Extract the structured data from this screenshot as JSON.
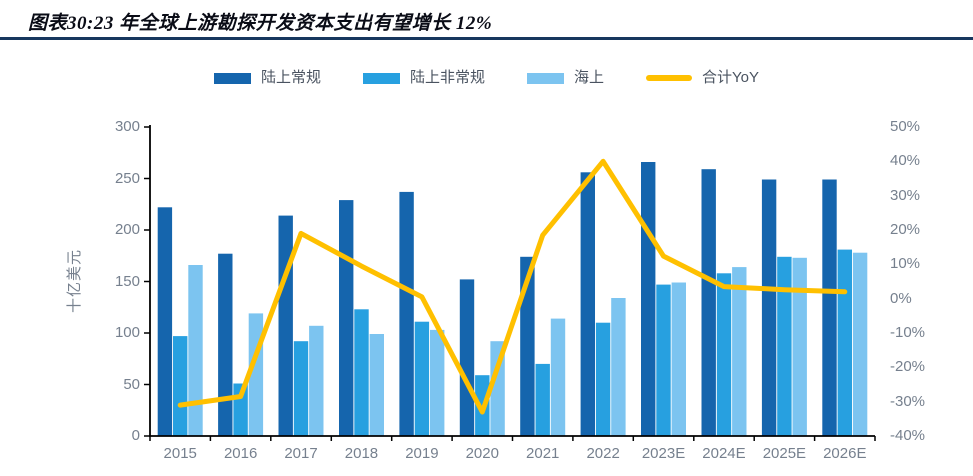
{
  "title": "图表30:23 年全球上游勘探开发资本支出有望增长 12%",
  "colors": {
    "title_text": "#0a0c16",
    "title_rule": "#17375e",
    "axis_line": "#000000",
    "tick_text": "#76808e",
    "legend_text": "#4a5360"
  },
  "y_axis_left": {
    "label": "十亿美元",
    "ticks": [
      0,
      50,
      100,
      150,
      200,
      250,
      300
    ]
  },
  "y_axis_right": {
    "ticks_percent": [
      50,
      40,
      30,
      20,
      10,
      0,
      -10,
      -20,
      -30,
      -40
    ]
  },
  "chart_data": {
    "type": "bar+line",
    "title": "23 年全球上游勘探开发资本支出有望增长 12%",
    "categories": [
      "2015",
      "2016",
      "2017",
      "2018",
      "2019",
      "2020",
      "2021",
      "2022",
      "2023E",
      "2024E",
      "2025E",
      "2026E"
    ],
    "series": [
      {
        "name": "陆上常规",
        "type": "bar",
        "axis": "left",
        "color": "#1565ad",
        "values": [
          222,
          177,
          214,
          229,
          237,
          152,
          174,
          256,
          266,
          259,
          249,
          249
        ]
      },
      {
        "name": "陆上非常规",
        "type": "bar",
        "axis": "left",
        "color": "#27a0e0",
        "values": [
          97,
          51,
          92,
          123,
          111,
          59,
          70,
          110,
          147,
          158,
          174,
          181
        ]
      },
      {
        "name": "海上",
        "type": "bar",
        "axis": "left",
        "color": "#7cc4f0",
        "values": [
          166,
          119,
          107,
          99,
          103,
          92,
          114,
          134,
          149,
          164,
          173,
          178
        ]
      },
      {
        "name": "合计YoY",
        "type": "line",
        "axis": "right",
        "color": "#ffc000",
        "values": [
          -31,
          -28.5,
          19,
          9.5,
          0.5,
          -33,
          18.5,
          40,
          12.4,
          3.5,
          2.6,
          2
        ]
      }
    ],
    "ylabel_left": "十亿美元",
    "ylim_left": [
      0,
      300
    ],
    "ylim_right": [
      -40,
      50
    ],
    "legend_position": "top",
    "grid": false
  }
}
